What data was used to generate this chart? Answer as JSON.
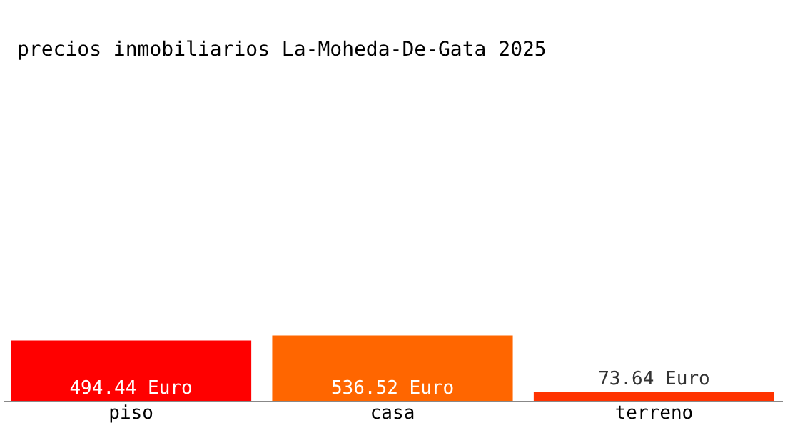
{
  "chart_data": {
    "type": "bar",
    "title": "precios inmobiliarios La-Moheda-De-Gata 2025",
    "categories": [
      "piso",
      "casa",
      "terreno"
    ],
    "values": [
      494.44,
      536.52,
      73.64
    ],
    "colors": [
      "#ff0000",
      "#ff6600",
      "#ff3300"
    ],
    "value_labels": [
      "494.44 Euro",
      "536.52 Euro",
      "73.64 Euro"
    ],
    "grid": false,
    "legend": false
  }
}
